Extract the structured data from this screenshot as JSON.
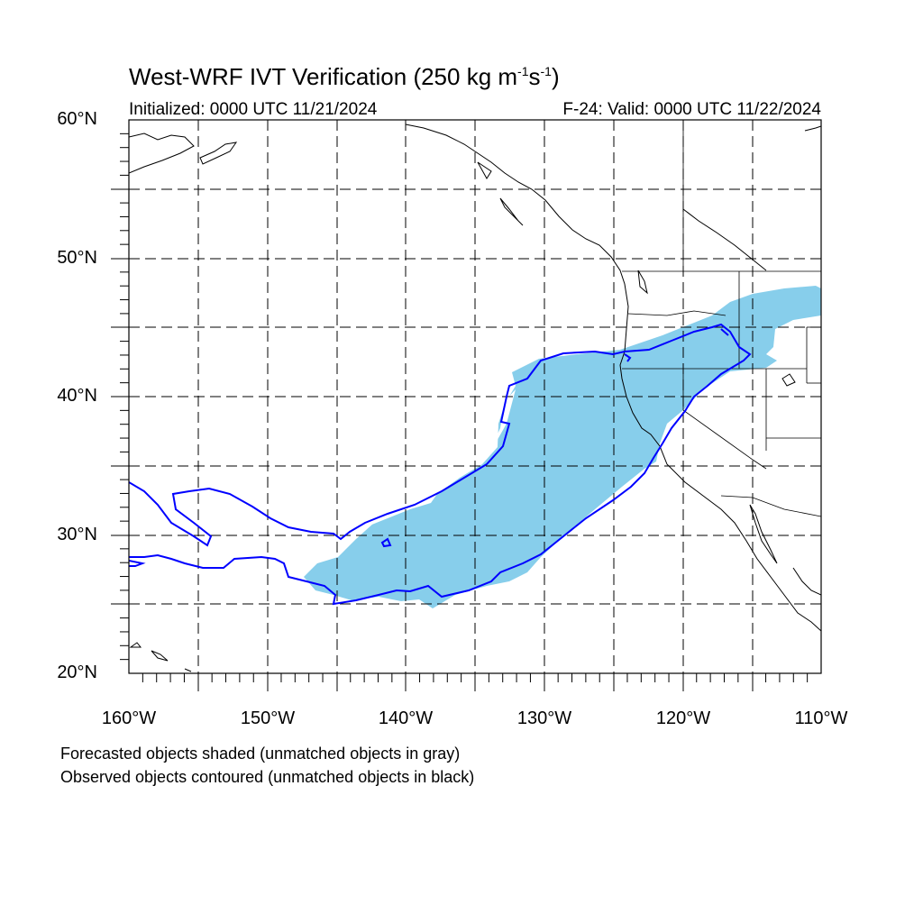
{
  "title_main": "West-WRF IVT Verification (250 kg m",
  "title_exp1": "-1",
  "title_mid": "s",
  "title_exp2": "-1",
  "title_end": ")",
  "initialized": "Initialized: 0000 UTC 11/21/2024",
  "valid": "F-24: Valid: 0000 UTC 11/22/2024",
  "map": {
    "lon_range": [
      -160,
      -110
    ],
    "lat_range": [
      20,
      60
    ],
    "grid": "dashed every 5 degrees",
    "lat_labels": [
      "60°N",
      "50°N",
      "40°N",
      "30°N",
      "20°N"
    ],
    "lon_labels": [
      "160°W",
      "150°W",
      "140°W",
      "130°W",
      "120°W",
      "110°W"
    ],
    "forecast_fill_color": "#87ceeb",
    "observed_contour_color": "#0000ff",
    "coastline_color": "#000000"
  },
  "notes": [
    "Forecasted objects shaded (unmatched objects in gray)",
    "Observed objects contoured (unmatched objects in black)"
  ]
}
